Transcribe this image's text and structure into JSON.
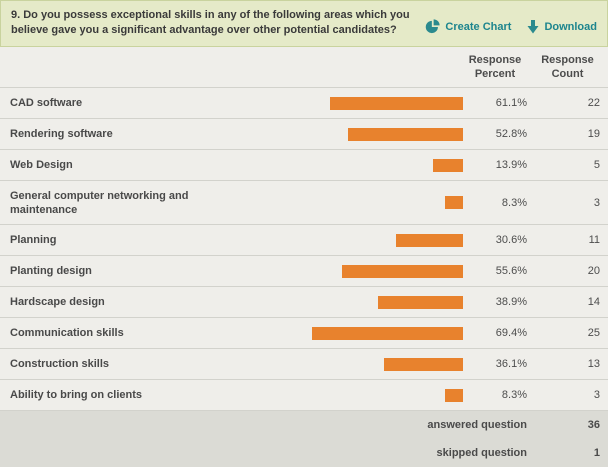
{
  "question": {
    "text": "9. Do you possess exceptional skills in any of the following areas which you believe gave you a significant advantage over other potential candidates?"
  },
  "actions": {
    "create_chart_label": "Create Chart",
    "download_label": "Download"
  },
  "table": {
    "headers": {
      "percent": "Response\nPercent",
      "count": "Response\nCount"
    },
    "rows": [
      {
        "label": "CAD software",
        "percent": "61.1%",
        "count": "22"
      },
      {
        "label": "Rendering software",
        "percent": "52.8%",
        "count": "19"
      },
      {
        "label": "Web Design",
        "percent": "13.9%",
        "count": "5"
      },
      {
        "label": "General computer networking and maintenance",
        "percent": "8.3%",
        "count": "3"
      },
      {
        "label": "Planning",
        "percent": "30.6%",
        "count": "11"
      },
      {
        "label": "Planting design",
        "percent": "55.6%",
        "count": "20"
      },
      {
        "label": "Hardscape design",
        "percent": "38.9%",
        "count": "14"
      },
      {
        "label": "Communication skills",
        "percent": "69.4%",
        "count": "25"
      },
      {
        "label": "Construction skills",
        "percent": "36.1%",
        "count": "13"
      },
      {
        "label": "Ability to bring on clients",
        "percent": "8.3%",
        "count": "3"
      }
    ],
    "summary": [
      {
        "label": "answered question",
        "value": "36"
      },
      {
        "label": "skipped question",
        "value": "1"
      }
    ]
  },
  "icons": {
    "create_chart": "pie-chart-icon",
    "download": "download-arrow-icon"
  },
  "colors": {
    "header_background": "#e5eac8",
    "accent_teal": "#1d858e",
    "bar_orange": "#e8822d",
    "row_background": "#efeeea",
    "footer_background": "#dbdbd5"
  },
  "chart_data": {
    "type": "bar",
    "orientation": "horizontal",
    "title": "9. Do you possess exceptional skills in any of the following areas which you believe gave you a significant advantage over other potential candidates?",
    "categories": [
      "CAD software",
      "Rendering software",
      "Web Design",
      "General computer networking and maintenance",
      "Planning",
      "Planting design",
      "Hardscape design",
      "Communication skills",
      "Construction skills",
      "Ability to bring on clients"
    ],
    "series": [
      {
        "name": "Response Percent",
        "values": [
          61.1,
          52.8,
          13.9,
          8.3,
          30.6,
          55.6,
          38.9,
          69.4,
          36.1,
          8.3
        ]
      },
      {
        "name": "Response Count",
        "values": [
          22,
          19,
          5,
          3,
          11,
          20,
          14,
          25,
          13,
          3
        ]
      }
    ],
    "answered_question": 36,
    "skipped_question": 1,
    "xlim": [
      0,
      100
    ]
  }
}
